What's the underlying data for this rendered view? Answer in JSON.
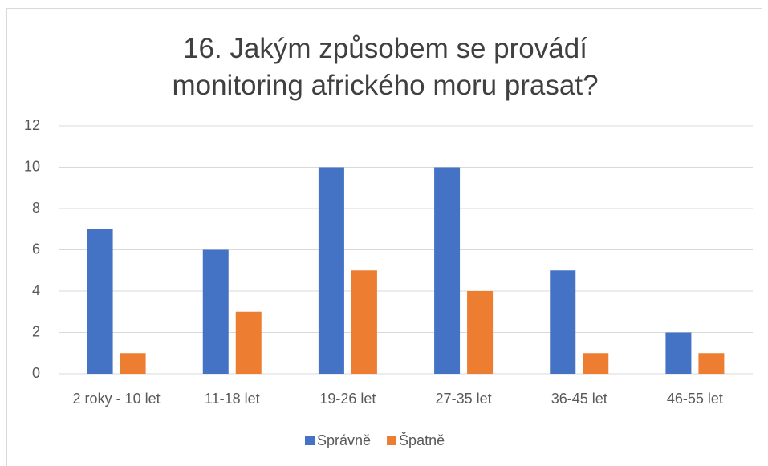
{
  "chart_data": {
    "type": "bar",
    "title": "16. Jakým způsobem se provádí monitoring afrického moru prasat?",
    "categories": [
      "2 roky - 10 let",
      "11-18 let",
      "19-26 let",
      "27-35 let",
      "36-45 let",
      "46-55 let"
    ],
    "series": [
      {
        "name": "Správně",
        "color": "#4472c4",
        "values": [
          7,
          6,
          10,
          10,
          5,
          2
        ]
      },
      {
        "name": "Špatně",
        "color": "#ed7d31",
        "values": [
          1,
          3,
          5,
          4,
          1,
          1
        ]
      }
    ],
    "ylim": [
      0,
      12
    ],
    "yticks": [
      0,
      2,
      4,
      6,
      8,
      10,
      12
    ],
    "grid": true,
    "legend": "bottom"
  }
}
